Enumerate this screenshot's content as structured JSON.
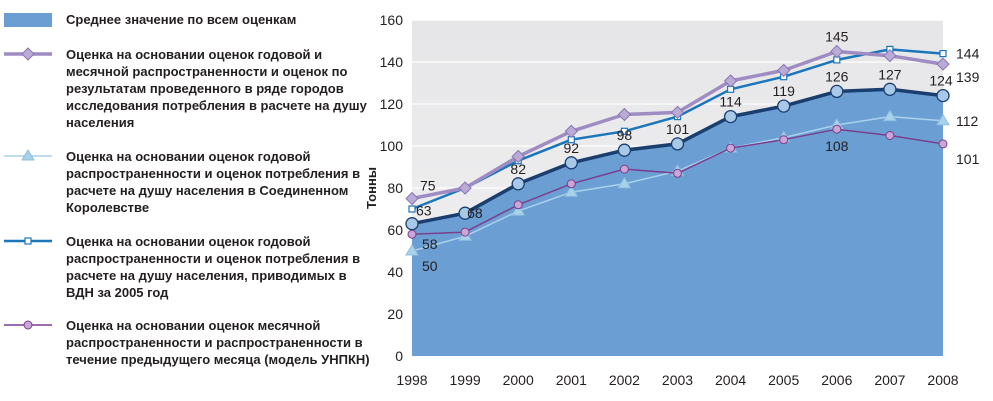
{
  "chart_data": {
    "type": "line",
    "ylabel": "Тонны",
    "ylim": [
      0,
      160
    ],
    "yticks": [
      0,
      20,
      40,
      60,
      80,
      100,
      120,
      140,
      160
    ],
    "x": [
      "1998",
      "1999",
      "2000",
      "2001",
      "2002",
      "2003",
      "2004",
      "2005",
      "2006",
      "2007",
      "2008"
    ],
    "grid": "horizontal",
    "legend": "left",
    "series": [
      {
        "name": "Среднее значение по всем оценкам",
        "kind": "area",
        "color": "#6b9fd4",
        "values": [
          63,
          68,
          82,
          92,
          98,
          101,
          114,
          119,
          126,
          127,
          124
        ],
        "labels": [
          "63",
          "68",
          "82",
          "92",
          "98",
          "101",
          "114",
          "119",
          "126",
          "127",
          "124"
        ]
      },
      {
        "name": "Оценка на основании оценок годовой и месячной распространенности и оценок по результатам проведенного в ряде городов исследования потребления в расчете на душу населения",
        "kind": "diamond",
        "color": "#9e8cc2",
        "values": [
          75,
          80,
          95,
          107,
          115,
          116,
          131,
          136,
          145,
          143,
          139
        ],
        "labels": [
          "75",
          "",
          "",
          "",
          "",
          "",
          "",
          "",
          "145",
          "",
          "139"
        ]
      },
      {
        "name": "Оценка на основании оценок годовой распространенности и оценок потребления в расчете на душу населения в Соединенном Королевстве",
        "kind": "triangle",
        "color": "#a9d1ea",
        "values": [
          50,
          57,
          69,
          78,
          82,
          88,
          99,
          104,
          110,
          114,
          112
        ],
        "labels": [
          "50",
          "",
          "",
          "",
          "",
          "",
          "",
          "",
          "",
          "",
          "112"
        ]
      },
      {
        "name": "Оценка на основании оценок годовой распространенности и оценок потребления в расчете на душу населения, приводимых в ВДН за 2005 год",
        "kind": "square",
        "color": "#1b75bb",
        "values": [
          70,
          80,
          93,
          103,
          107,
          114,
          127,
          133,
          141,
          146,
          144
        ],
        "labels": [
          "",
          "",
          "",
          "",
          "",
          "",
          "",
          "",
          "",
          "",
          "144"
        ]
      },
      {
        "name": "Оценка на основании оценок месячной распространенности и распространенности в течение предыдущего месяца (модель УНПКН)",
        "kind": "circle",
        "color": "#7a3f8f",
        "values": [
          58,
          59,
          72,
          82,
          89,
          87,
          99,
          103,
          108,
          105,
          101
        ],
        "labels": [
          "58",
          "",
          "",
          "",
          "",
          "",
          "",
          "",
          "108",
          "",
          "101"
        ]
      }
    ]
  }
}
